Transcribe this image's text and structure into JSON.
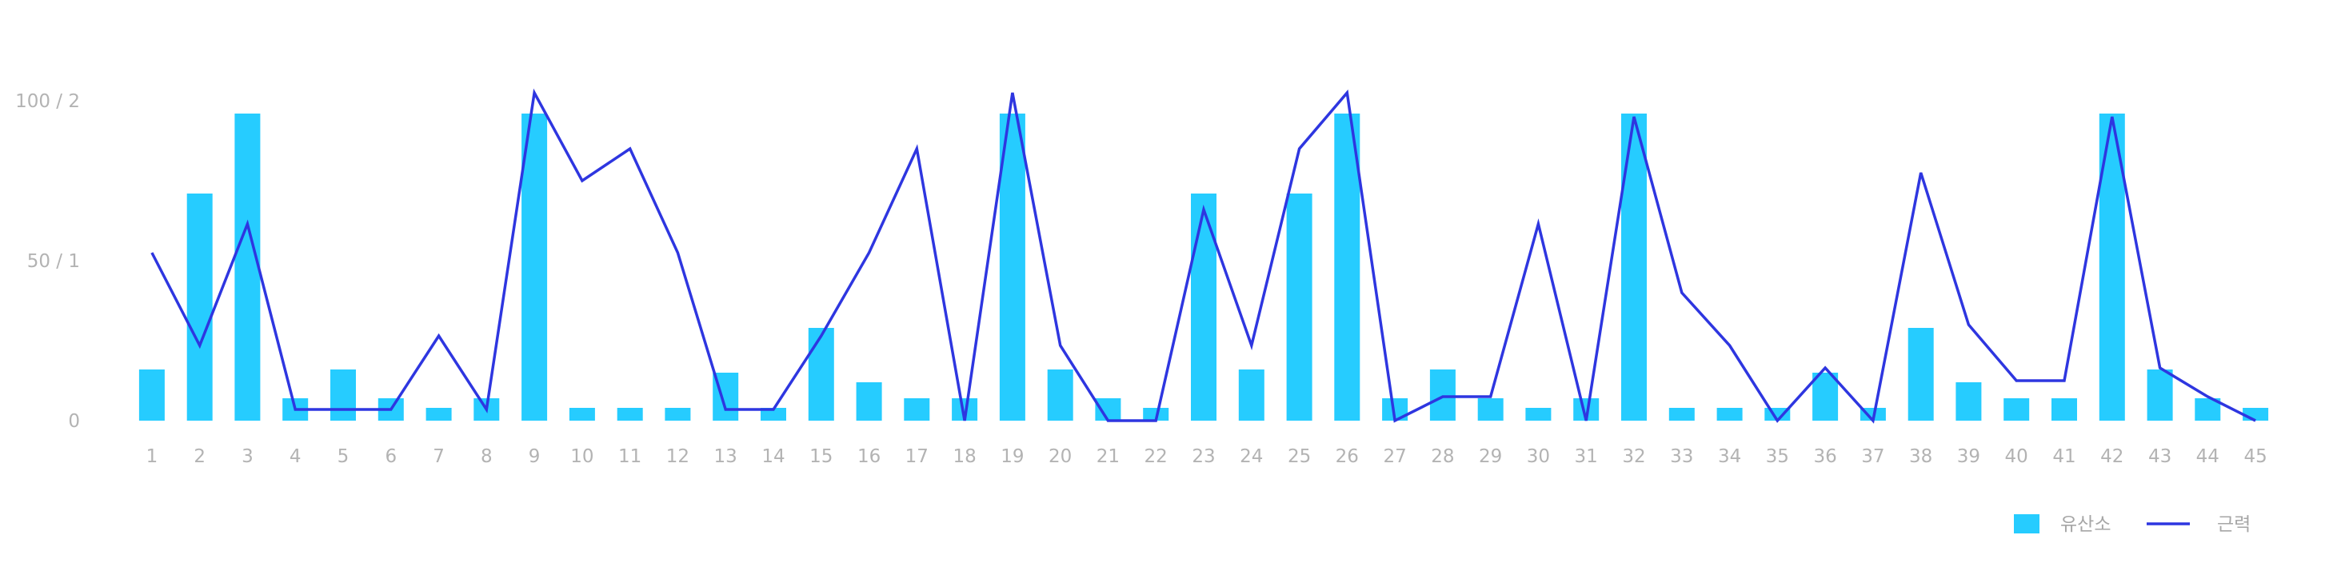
{
  "chart_data": {
    "type": "bar",
    "categories": [
      "1",
      "2",
      "3",
      "4",
      "5",
      "6",
      "7",
      "8",
      "9",
      "10",
      "11",
      "12",
      "13",
      "14",
      "15",
      "16",
      "17",
      "18",
      "19",
      "20",
      "21",
      "22",
      "23",
      "24",
      "25",
      "26",
      "27",
      "28",
      "29",
      "30",
      "31",
      "32",
      "33",
      "34",
      "35",
      "36",
      "37",
      "38",
      "39",
      "40",
      "41",
      "42",
      "43",
      "44",
      "45"
    ],
    "series": [
      {
        "name": "유산소",
        "type": "bar",
        "color": "#26CCFF",
        "axis": "left",
        "values": [
          16,
          71,
          96,
          7,
          16,
          7,
          4,
          7,
          96,
          4,
          4,
          4,
          15,
          4,
          29,
          12,
          7,
          7,
          96,
          16,
          7,
          4,
          71,
          16,
          71,
          96,
          7,
          16,
          7,
          4,
          7,
          96,
          4,
          4,
          4,
          15,
          4,
          29,
          12,
          7,
          7,
          96,
          16,
          7,
          4
        ]
      },
      {
        "name": "근력",
        "type": "line",
        "color": "#2E36E0",
        "axis": "right",
        "values": [
          1.05,
          0.47,
          1.23,
          0.07,
          0.07,
          0.07,
          0.53,
          0.07,
          2.05,
          1.5,
          1.7,
          1.05,
          0.07,
          0.07,
          0.53,
          1.05,
          1.7,
          0.0,
          2.05,
          0.47,
          0.0,
          0.0,
          1.32,
          0.47,
          1.7,
          2.05,
          0.0,
          0.15,
          0.15,
          1.23,
          0.0,
          1.9,
          0.8,
          0.47,
          0.0,
          0.33,
          0.0,
          1.55,
          0.6,
          0.25,
          0.25,
          1.9,
          0.33,
          0.15,
          0.0
        ]
      }
    ],
    "y_ticks": [
      "0",
      "50 / 1",
      "100 / 2"
    ],
    "ylim_left": [
      0,
      100
    ],
    "ylim_right": [
      0,
      2
    ],
    "legend": {
      "position": "bottom-right",
      "entries": [
        "유산소",
        "근력"
      ]
    },
    "grid": false,
    "xlabel": "",
    "ylabel": "",
    "title": ""
  }
}
